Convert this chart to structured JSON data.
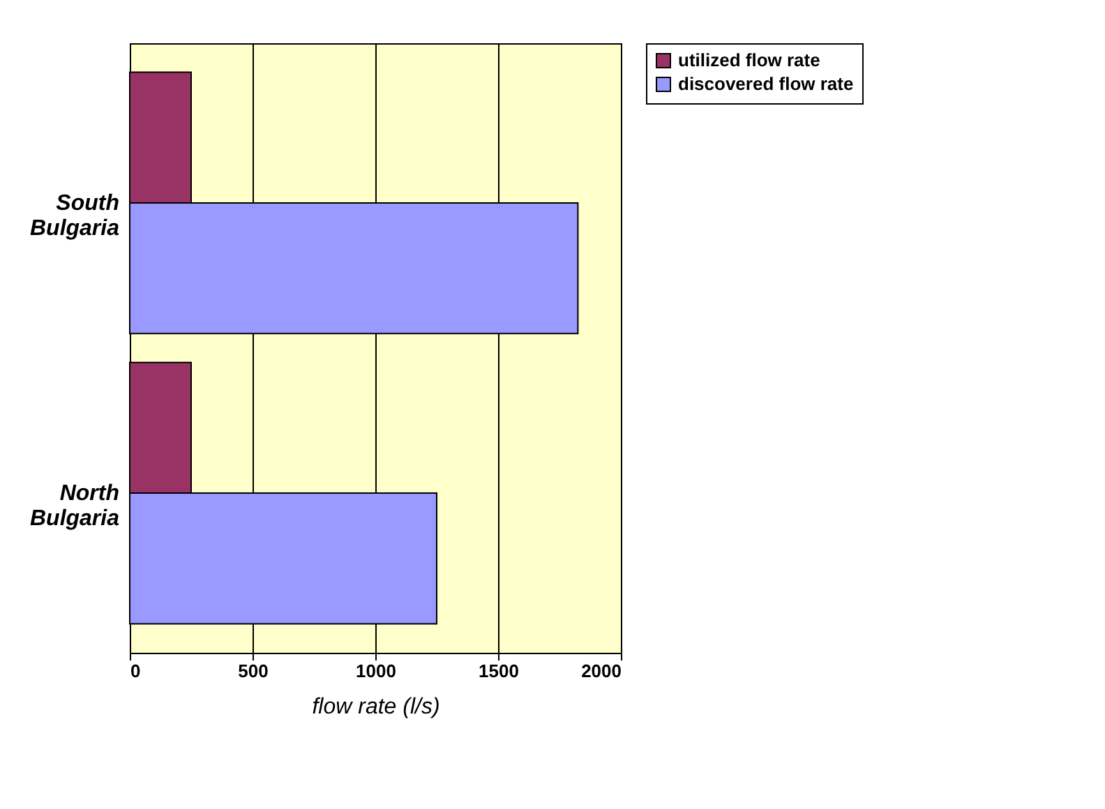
{
  "chart_data": {
    "type": "bar",
    "orientation": "horizontal",
    "xlabel": "flow rate (l/s)",
    "categories": [
      "South Bulgaria",
      "North Bulgaria"
    ],
    "series": [
      {
        "name": "utilized flow rate",
        "color": "#993366",
        "values": [
          250,
          250
        ]
      },
      {
        "name": "discovered flow rate",
        "color": "#9999ff",
        "values": [
          1825,
          1250
        ]
      }
    ],
    "xlim": [
      0,
      2000
    ],
    "xticks": [
      0,
      500,
      1000,
      1500,
      2000
    ],
    "grid": "x",
    "legend": "top right"
  }
}
